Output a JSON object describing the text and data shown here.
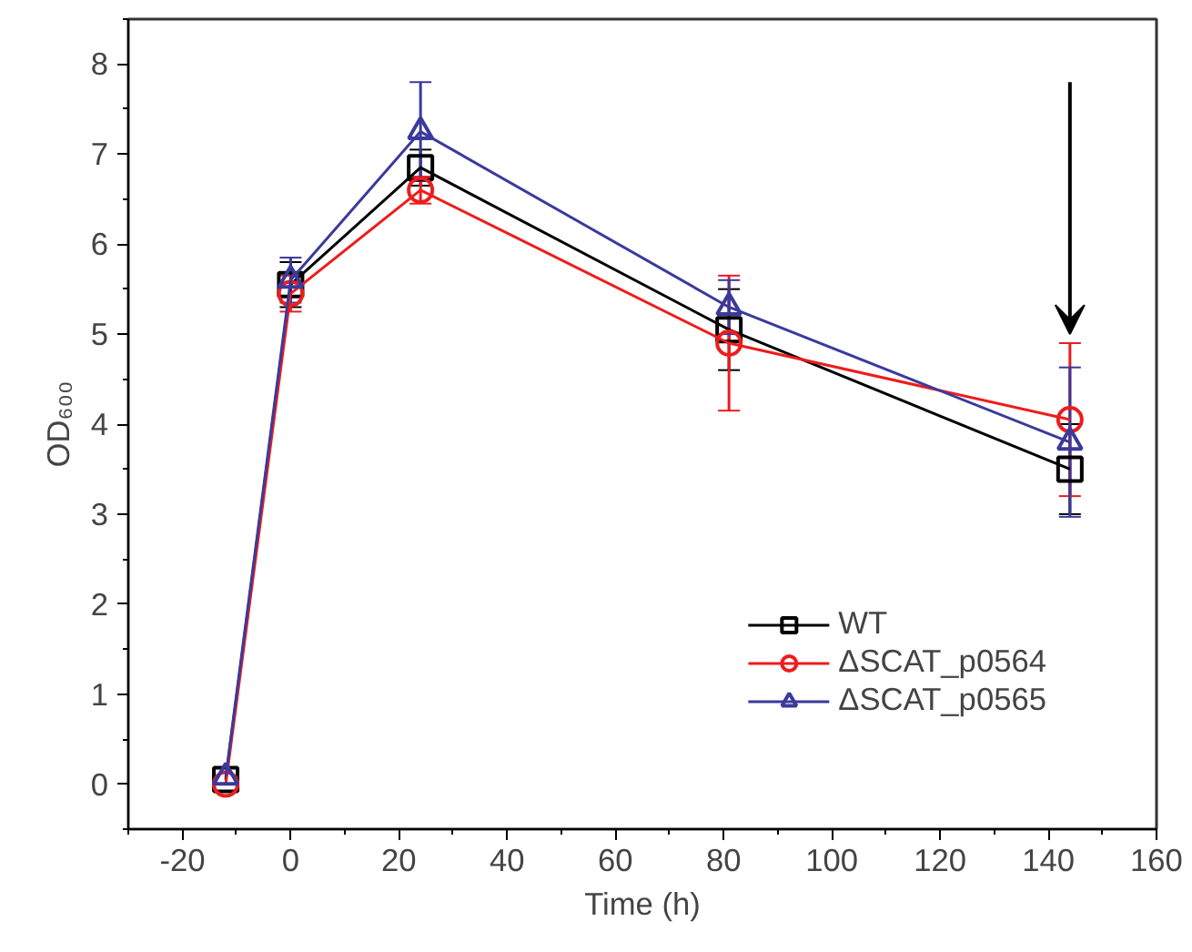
{
  "chart_data": {
    "type": "line",
    "xlabel": "Time (h)",
    "ylabel": "OD₆₀₀",
    "x": [
      -12,
      0,
      24,
      81,
      144
    ],
    "xlim": [
      -30,
      160
    ],
    "xticks": [
      -20,
      0,
      20,
      40,
      60,
      80,
      100,
      120,
      140,
      160
    ],
    "ylim": [
      -0.5,
      8.5
    ],
    "yticks": [
      0,
      1,
      2,
      3,
      4,
      5,
      6,
      7,
      8
    ],
    "grid": false,
    "legend": "bottom right",
    "line_style": "solid",
    "series": [
      {
        "name": "WT",
        "color": "#000000",
        "marker": "square",
        "values": [
          0.05,
          5.55,
          6.85,
          5.05,
          3.5
        ],
        "errors": [
          null,
          0.25,
          0.2,
          0.45,
          0.5
        ]
      },
      {
        "name": "ΔSCAT_p0564",
        "color": "#ee1c1c",
        "marker": "circle",
        "values": [
          0.0,
          5.45,
          6.6,
          4.9,
          4.05
        ],
        "errors": [
          null,
          0.2,
          0.15,
          0.75,
          0.85
        ]
      },
      {
        "name": "ΔSCAT_p0565",
        "color": "#3a3a9c",
        "marker": "triangle",
        "values": [
          0.08,
          5.6,
          7.25,
          5.3,
          3.8
        ],
        "errors": [
          null,
          0.25,
          0.55,
          0.3,
          0.83
        ]
      }
    ]
  }
}
